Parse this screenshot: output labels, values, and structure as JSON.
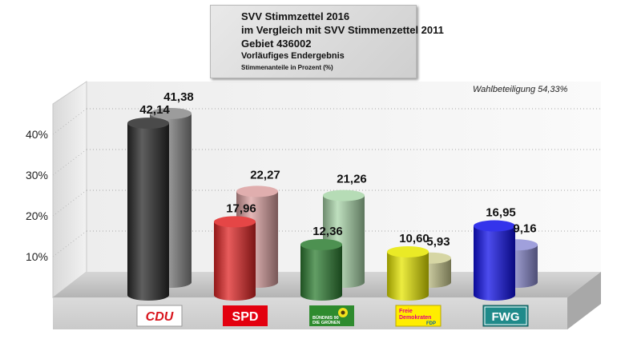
{
  "title": {
    "line1": "SVV Stimmzettel 2016",
    "line2": "im Vergleich mit SVV Stimmenzettel 2011",
    "line3": "Gebiet 436002",
    "line4": "Vorläufiges Endergebnis",
    "line5": "Stimmenanteile in Prozent (%)"
  },
  "turnout_label": "Wahlbeteiligung 54,33%",
  "colors": {
    "cdu_2016": "#2a2a2a",
    "cdu_2011": "#8a8a8a",
    "spd_2016": "#e02525",
    "spd_2011": "#dba0a0",
    "gruene_2016": "#2e7d32",
    "gruene_2011": "#a9d6a9",
    "fdp_2016": "#e6e600",
    "fdp_2011": "#cfcf94",
    "fwg_2016": "#1010e8",
    "fwg_2011": "#8f8fd6"
  },
  "chart_data": {
    "type": "bar",
    "categories": [
      "CDU",
      "SPD",
      "BÜNDNIS 90 DIE GRÜNEN",
      "Freie Demokraten FDP",
      "FWG"
    ],
    "series": [
      {
        "values": [
          42.14,
          17.96,
          12.36,
          10.6,
          16.95
        ],
        "labels": [
          "42,14",
          "17,96",
          "12,36",
          "10,60",
          "16,95"
        ]
      },
      {
        "values": [
          41.38,
          22.27,
          21.26,
          5.93,
          9.16
        ],
        "labels": [
          "41,38",
          "22,27",
          "21,26",
          "5,93",
          "9,16"
        ]
      }
    ],
    "y_ticks": [
      10,
      20,
      30,
      40
    ],
    "y_tick_labels": [
      "10%",
      "20%",
      "30%",
      "40%"
    ],
    "ylim": [
      0,
      50
    ],
    "grid": true,
    "legend": "none"
  }
}
